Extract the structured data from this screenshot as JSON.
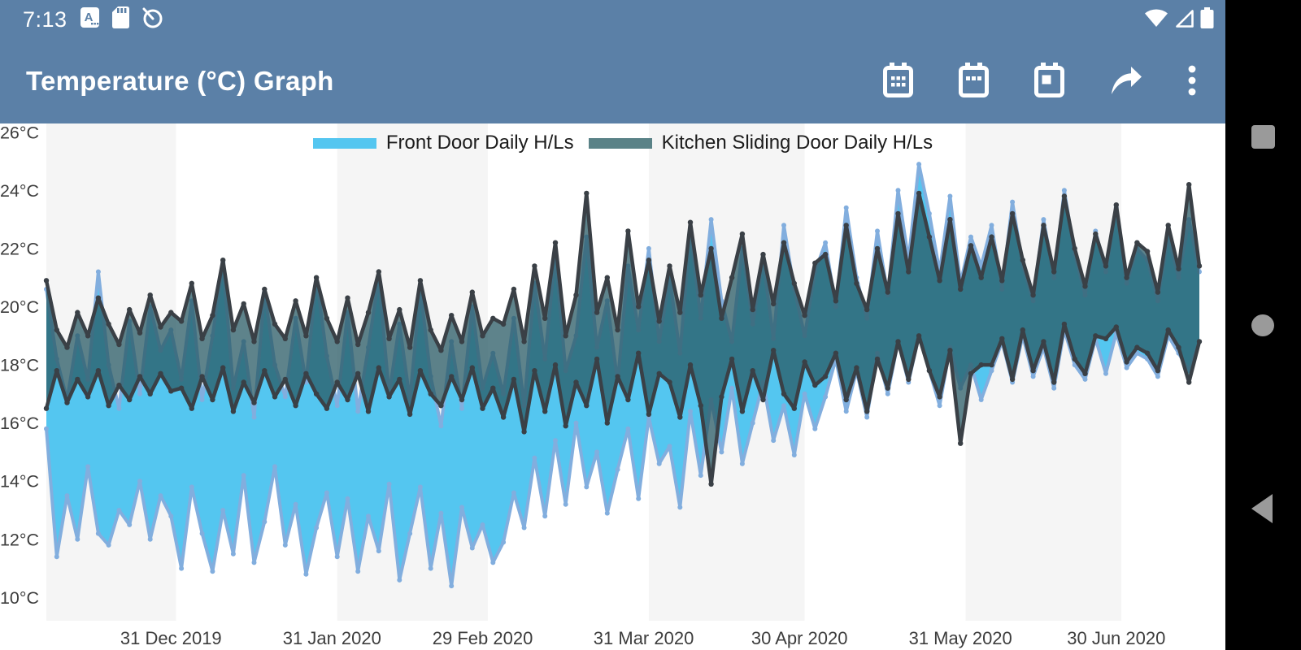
{
  "status_bar": {
    "time": "7:13",
    "left_icons": [
      "letter-a-icon",
      "sd-card-icon",
      "android-q-icon"
    ],
    "right_icons": [
      "wifi-icon",
      "cell-signal-icon",
      "battery-icon"
    ],
    "bg_color": "#5B80A7"
  },
  "app_bar": {
    "title": "Temperature (°C) Graph",
    "actions": [
      "calendar-month-icon",
      "calendar-week-icon",
      "calendar-day-icon",
      "share-icon",
      "overflow-menu-icon"
    ]
  },
  "nav_bar": {
    "buttons": [
      "recents",
      "home",
      "back"
    ],
    "bg_color": "#000000",
    "button_color": "#9A9A9A"
  },
  "chart_data": {
    "type": "area",
    "subtype": "daily-high-low-range",
    "title": "Temperature (°C) Graph",
    "y_unit": "°C",
    "ylim": [
      9.2,
      26.3
    ],
    "grid": false,
    "legend_position": "top-center",
    "month_band_color_even": "#F5F5F5",
    "month_band_color_odd": "#FFFFFF",
    "yticks": [
      {
        "value": 26,
        "label": "26°C"
      },
      {
        "value": 24,
        "label": "24°C"
      },
      {
        "value": 22,
        "label": "22°C"
      },
      {
        "value": 20,
        "label": "20°C"
      },
      {
        "value": 18,
        "label": "18°C"
      },
      {
        "value": 16,
        "label": "16°C"
      },
      {
        "value": 14,
        "label": "14°C"
      },
      {
        "value": 12,
        "label": "12°C"
      },
      {
        "value": 10,
        "label": "10°C"
      }
    ],
    "x_start_date": "2019-12-07",
    "x_end_date": "2020-07-16",
    "point_interval_days": 2,
    "xticks": [
      {
        "date": "2019-12-31",
        "label": "31 Dec 2019"
      },
      {
        "date": "2020-01-31",
        "label": "31 Jan 2020"
      },
      {
        "date": "2020-02-29",
        "label": "29 Feb 2020"
      },
      {
        "date": "2020-03-31",
        "label": "31 Mar 2020"
      },
      {
        "date": "2020-04-30",
        "label": "30 Apr 2020"
      },
      {
        "date": "2020-05-31",
        "label": "31 May 2020"
      },
      {
        "date": "2020-06-30",
        "label": "30 Jun 2020"
      }
    ],
    "series": [
      {
        "name": "Front Door Daily H/Ls",
        "fill": "#54C6F0",
        "line": "#82AEDE",
        "legend_swatch": "#54C6F0",
        "high": [
          20.6,
          18.2,
          16.8,
          19.0,
          17.5,
          21.2,
          18.0,
          16.5,
          19.5,
          17.0,
          20.0,
          18.5,
          19.2,
          17.5,
          20.2,
          16.8,
          19.0,
          21.5,
          17.2,
          18.8,
          16.2,
          20.5,
          18.0,
          16.9,
          19.6,
          17.4,
          21.0,
          18.3,
          16.6,
          19.8,
          16.4,
          18.6,
          21.0,
          17.0,
          19.4,
          16.8,
          20.6,
          17.6,
          15.9,
          18.8,
          16.5,
          20.0,
          17.2,
          18.4,
          17.0,
          19.6,
          16.6,
          20.8,
          18.2,
          21.8,
          17.8,
          19.0,
          22.4,
          18.6,
          20.2,
          17.4,
          21.4,
          19.2,
          22.0,
          18.8,
          21.0,
          18.4,
          22.6,
          19.6,
          23.0,
          20.2,
          18.8,
          22.0,
          19.4,
          21.6,
          18.9,
          22.8,
          20.6,
          19.0,
          21.2,
          22.2,
          20.0,
          23.4,
          21.0,
          19.6,
          22.6,
          20.4,
          24.0,
          21.6,
          24.9,
          23.2,
          21.2,
          23.8,
          20.8,
          22.4,
          21.4,
          22.8,
          20.6,
          23.6,
          21.4,
          20.2,
          23.0,
          21.0,
          24.0,
          21.8,
          20.4,
          22.6,
          21.2,
          23.4,
          20.8,
          22.0,
          21.6,
          20.2,
          22.4,
          21.0,
          23.0,
          21.2
        ],
        "low": [
          15.8,
          11.4,
          13.5,
          12.0,
          14.5,
          12.2,
          11.8,
          13.0,
          12.5,
          14.0,
          12.0,
          13.5,
          12.8,
          11.0,
          13.8,
          12.2,
          10.9,
          13.0,
          11.5,
          14.2,
          11.2,
          12.6,
          14.5,
          11.8,
          13.2,
          10.8,
          12.4,
          13.6,
          11.4,
          13.4,
          10.9,
          12.8,
          11.6,
          13.9,
          10.6,
          12.2,
          13.8,
          11.0,
          12.9,
          10.4,
          13.1,
          11.7,
          12.5,
          11.2,
          11.9,
          13.6,
          12.4,
          14.8,
          12.8,
          15.4,
          13.2,
          16.0,
          13.8,
          15.0,
          12.9,
          14.4,
          15.8,
          13.4,
          16.2,
          14.6,
          15.2,
          13.1,
          16.4,
          14.2,
          16.8,
          15.0,
          17.2,
          14.6,
          16.0,
          17.4,
          15.4,
          16.6,
          14.9,
          17.0,
          15.8,
          16.9,
          18.2,
          16.4,
          17.8,
          16.2,
          18.4,
          17.0,
          18.8,
          17.4,
          19.0,
          17.8,
          16.6,
          18.6,
          17.2,
          18.0,
          16.8,
          17.8,
          18.8,
          17.4,
          19.0,
          17.6,
          18.6,
          17.2,
          19.2,
          18.0,
          17.5,
          18.9,
          17.7,
          19.1,
          17.9,
          18.4,
          18.2,
          17.6,
          19.0,
          18.4,
          17.8,
          18.8
        ]
      },
      {
        "name": "Kitchen Sliding Door Daily H/Ls",
        "fill": "rgba(40,90,100,0.75)",
        "line": "#3A4046",
        "legend_swatch": "#5A8287",
        "high": [
          20.9,
          19.2,
          18.6,
          19.8,
          19.0,
          20.3,
          19.4,
          18.7,
          19.9,
          19.1,
          20.4,
          19.3,
          19.8,
          19.5,
          20.8,
          18.9,
          19.7,
          21.6,
          19.2,
          20.1,
          18.8,
          20.6,
          19.4,
          18.9,
          20.2,
          19.0,
          21.0,
          19.6,
          18.8,
          20.3,
          18.7,
          19.8,
          21.2,
          18.9,
          19.9,
          18.6,
          20.9,
          19.2,
          18.5,
          19.7,
          18.8,
          20.5,
          19.0,
          19.6,
          19.4,
          20.6,
          18.8,
          21.4,
          19.6,
          22.2,
          19.0,
          20.4,
          23.9,
          19.8,
          21.0,
          19.2,
          22.6,
          20.0,
          21.6,
          19.5,
          21.4,
          19.8,
          22.9,
          20.4,
          22.0,
          19.6,
          21.0,
          22.5,
          19.9,
          21.8,
          20.1,
          22.2,
          20.8,
          19.7,
          21.5,
          21.8,
          20.2,
          22.8,
          20.8,
          19.9,
          22.0,
          20.5,
          23.2,
          21.2,
          23.9,
          22.4,
          20.9,
          23.0,
          20.6,
          22.1,
          21.0,
          22.4,
          20.9,
          23.2,
          21.6,
          20.4,
          22.8,
          21.2,
          23.8,
          22.0,
          20.7,
          22.5,
          21.4,
          23.5,
          21.0,
          22.2,
          21.9,
          20.5,
          22.8,
          21.3,
          24.2,
          21.4
        ],
        "low": [
          16.5,
          17.8,
          16.7,
          17.5,
          16.9,
          17.8,
          16.6,
          17.3,
          16.8,
          17.6,
          17.0,
          17.7,
          17.1,
          17.2,
          16.5,
          17.6,
          16.8,
          17.9,
          16.4,
          17.4,
          16.7,
          17.8,
          16.9,
          17.5,
          16.6,
          17.7,
          17.0,
          16.5,
          17.4,
          16.8,
          17.7,
          16.4,
          17.9,
          16.9,
          17.5,
          16.3,
          17.8,
          17.0,
          16.6,
          17.6,
          16.8,
          17.9,
          16.5,
          17.2,
          16.2,
          17.5,
          15.7,
          17.8,
          16.4,
          18.0,
          15.9,
          17.4,
          16.6,
          18.2,
          16.0,
          17.6,
          16.8,
          18.4,
          16.3,
          17.7,
          17.4,
          16.2,
          18.0,
          16.6,
          13.9,
          16.9,
          18.2,
          16.4,
          17.8,
          16.8,
          18.5,
          17.0,
          16.5,
          18.1,
          17.3,
          17.6,
          18.4,
          16.8,
          17.9,
          16.4,
          18.2,
          17.2,
          18.8,
          17.5,
          19.0,
          17.8,
          16.9,
          18.5,
          15.3,
          17.7,
          18.0,
          18.0,
          18.9,
          17.5,
          19.2,
          17.8,
          18.8,
          17.4,
          19.4,
          18.2,
          17.7,
          19.0,
          18.9,
          19.3,
          18.1,
          18.6,
          18.4,
          17.8,
          19.2,
          18.6,
          17.4,
          18.8
        ]
      }
    ]
  }
}
